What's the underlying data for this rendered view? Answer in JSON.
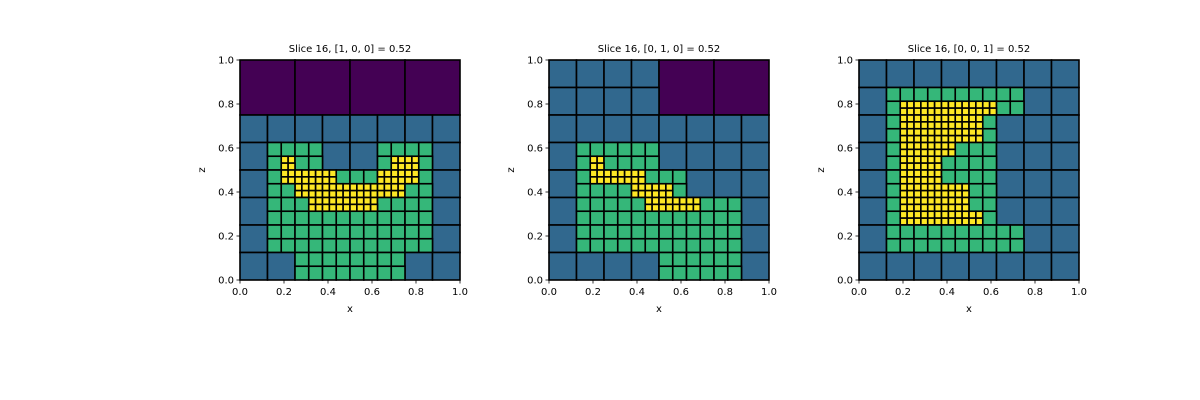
{
  "colors": {
    "level0": "#440154",
    "level1": "#31688e",
    "level2": "#35b779",
    "level3": "#fde725",
    "edge": "#000000"
  },
  "chart_data": [
    {
      "type": "heatmap",
      "title": "Slice 16, [1, 0, 0] = 0.52",
      "xlabel": "x",
      "ylabel": "z",
      "xlim": [
        0,
        1
      ],
      "ylim": [
        0,
        1
      ],
      "xticks": [
        "0.0",
        "0.2",
        "0.4",
        "0.6",
        "0.8",
        "1.0"
      ],
      "yticks": [
        "0.0",
        "0.2",
        "0.4",
        "0.6",
        "0.8",
        "1.0"
      ],
      "grid": "32x32 finest resolution, row 0 = top (z=1.0), col 0 = left (x=0.0); value = refinement level (0 = coarsest 8x8 block, 3 = finest 1x1)",
      "levels": [
        "00000000000000000000000000000000",
        "00000000000000000000000000000000",
        "00000000000000000000000000000000",
        "00000000000000000000000000000000",
        "00000000000000000000000000000000",
        "00000000000000000000000000000000",
        "00000000000000000000000000000000",
        "00000000000000000000000000000000",
        "11111111111111111111111111111111",
        "11111111111111111111111111111111",
        "11111111111111111111111111111111",
        "11111111111111111111111111111111",
        "11112222222211111111222222221111",
        "11112222222211111111222222221111",
        "11112233222222222222223333221111",
        "11112233222222222222223333221111",
        "11112233333333222222333333221111",
        "11112233333333222222333333221111",
        "11112233333333333333333333221111",
        "11112222333333333333333322221111",
        "11112222333333333333222222221111",
        "11112222223333333333222222221111",
        "11112222222222222222222222221111",
        "11112222222222222222222222221111",
        "11112222222222222222222222221111",
        "11112222222222222222222222221111",
        "11112222222222222222222222221111",
        "11112222222222222222222222221111",
        "11111111222222222222222211111111",
        "11111111222222222222222211111111",
        "11111111222222222222222211111111",
        "11111111222222222222222211111111"
      ]
    },
    {
      "type": "heatmap",
      "title": "Slice 16, [0, 1, 0] = 0.52",
      "xlabel": "x",
      "ylabel": "z",
      "xlim": [
        0,
        1
      ],
      "ylim": [
        0,
        1
      ],
      "xticks": [
        "0.0",
        "0.2",
        "0.4",
        "0.6",
        "0.8",
        "1.0"
      ],
      "yticks": [
        "0.0",
        "0.2",
        "0.4",
        "0.6",
        "0.8",
        "1.0"
      ],
      "grid": "32x32 finest resolution, row 0 = top (z=1.0), col 0 = left (x=0.0); value = refinement level",
      "levels": [
        "11111111111111110000000000000000",
        "11111111111111110000000000000000",
        "11111111111111110000000000000000",
        "11111111111111110000000000000000",
        "11111111111111110000000000000000",
        "11111111111111110000000000000000",
        "11111111111111110000000000000000",
        "11111111111111110000000000000000",
        "11111111111111111111111111111111",
        "11111111111111111111111111111111",
        "11111111111111111111111111111111",
        "11111111111111111111111111111111",
        "11112222222222221111111111111111",
        "11112222222222221111111111111111",
        "11112233222222222222111111111111",
        "11112233333333222222111111111111",
        "11112233333333222222111111111111",
        "11112233333333222222111111111111",
        "11112222222233333322222222221111",
        "11112222222233333322222222221111",
        "11112222222222333333332222221111",
        "11112222222222333333332222221111",
        "11112222222222222222332222221111",
        "11112222222222222222222222221111",
        "11112222222222222222222222221111",
        "11112222222222222222222222221111",
        "11112222222222222222222222221111",
        "11112222222222222222222222221111",
        "11111111111111112222222222221111",
        "11111111111111112222222222221111",
        "11111111111111112222222222221111",
        "11111111111111112222222222221111"
      ]
    },
    {
      "type": "heatmap",
      "title": "Slice 16, [0, 0, 1] = 0.52",
      "xlabel": "x",
      "ylabel": "z",
      "xlim": [
        0,
        1
      ],
      "ylim": [
        0,
        1
      ],
      "xticks": [
        "0.0",
        "0.2",
        "0.4",
        "0.6",
        "0.8",
        "1.0"
      ],
      "yticks": [
        "0.0",
        "0.2",
        "0.4",
        "0.6",
        "0.8",
        "1.0"
      ],
      "grid": "32x32 finest resolution, row 0 = top (z=1.0), col 0 = left (x=0.0); value = refinement level",
      "levels": [
        "11111111111111111111111111111111",
        "11111111111111111111111111111111",
        "11111111111111111111111111111111",
        "11111111111111111111111111111111",
        "11112222222222222222222211111111",
        "11112222222222222222222211111111",
        "11112233333333333333222211111111",
        "11112233333333333333222211111111",
        "11112233333333333322221111111111",
        "11112233333333333322221111111111",
        "11112233333333333322221111111111",
        "11112233333333333322221111111111",
        "11112233333333222222111111111111",
        "11112233333333222222111111111111",
        "11112233333322222222111111111111",
        "11112233333322222222111111111111",
        "11112233333322222222111111111111",
        "11112233333322222222111111111111",
        "11112233333333332222111111111111",
        "11112233333333332222111111111111",
        "11112233333333332222111111111111",
        "11112233333333332222111111111111",
        "11112233333333333322222211111111",
        "11112233333333333322222211111111",
        "11112233333333333322222211111111",
        "11112222222222222222222211111111",
        "11112222222222222222222211111111",
        "11112222222222222222222211111111",
        "11111111111111111111111111111111",
        "11111111111111111111111111111111",
        "11111111111111111111111111111111",
        "11111111111111111111111111111111"
      ]
    }
  ]
}
